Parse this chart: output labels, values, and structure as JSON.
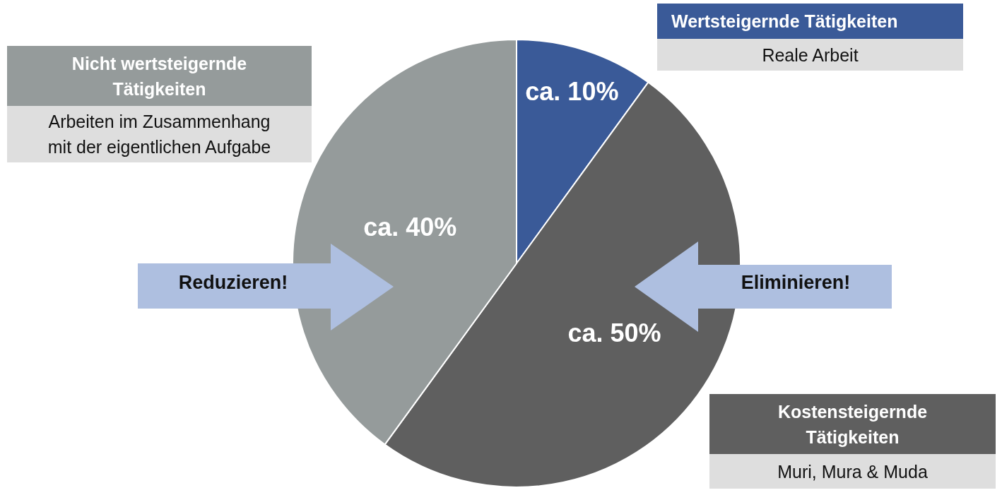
{
  "chart_data": {
    "type": "pie",
    "categories": [
      "Wertsteigernde Tätigkeiten",
      "Kostensteigernde Tätigkeiten",
      "Nicht wertsteigernde Tätigkeiten"
    ],
    "values": [
      10,
      50,
      40
    ],
    "colors": [
      "#3a5a98",
      "#5f5f5f",
      "#959b9b"
    ],
    "value_labels": [
      "ca. 10%",
      "ca. 50%",
      "ca. 40%"
    ],
    "annotations": [
      "Reale Arbeit",
      "Muri, Mura & Muda",
      "Arbeiten im Zusammenhang mit der eigentlichen Aufgabe",
      "Reduzieren!",
      "Eliminieren!"
    ]
  }
}
